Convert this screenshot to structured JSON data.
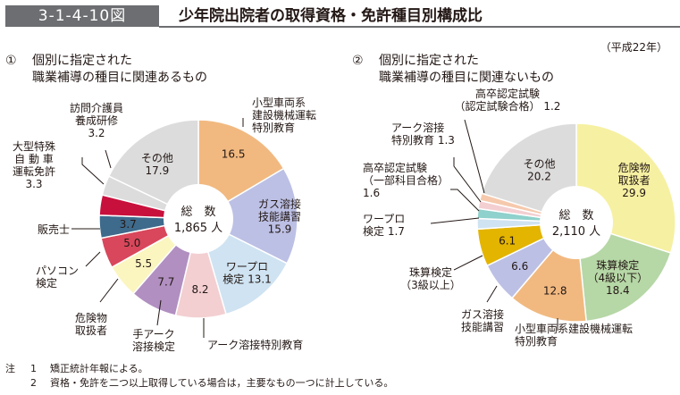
{
  "header": {
    "figure_label": "3-1-4-10図",
    "title": "少年院出院者の取得資格・免許種目別構成比"
  },
  "year_note": "（平成22年）",
  "notes": {
    "label": "注",
    "items": [
      {
        "num": "1",
        "text": "矯正統計年報による。"
      },
      {
        "num": "2",
        "text": "資格・免許を二つ以上取得している場合は，主要なもの一つに計上している。"
      }
    ]
  },
  "colors": {
    "orange": "#f1b980",
    "lavender": "#bcc0e5",
    "light_blue": "#cfe3f2",
    "pink": "#f3cfd2",
    "purple": "#b18fc1",
    "cream": "#fbf5c0",
    "red": "#d8475b",
    "steel_blue": "#3e6a8c",
    "crimson": "#c8103c",
    "gray": "#dcdcdc",
    "yellow": "#f6f0a2",
    "green": "#b6d7a6",
    "gold": "#e3b400",
    "teal": "#8fd1cc",
    "peach": "#f6c9ad"
  },
  "chart_data": [
    {
      "type": "pie",
      "donut": true,
      "number": "①",
      "title": [
        "個別に指定された",
        "職業補導の種目に関連あるもの"
      ],
      "center_label": [
        "総　数",
        "1,865 人"
      ],
      "unit": "%",
      "slices": [
        {
          "label": "小型車両系建設機械運転特別教育",
          "value": 16.5,
          "color": "orange"
        },
        {
          "label": "ガス溶接技能講習",
          "value": 15.9,
          "color": "lavender"
        },
        {
          "label": "ワープロ検定",
          "value": 13.1,
          "color": "light_blue"
        },
        {
          "label": "アーク溶接特別教育",
          "value": 8.2,
          "color": "pink"
        },
        {
          "label": "手アーク溶接検定",
          "value": 7.7,
          "color": "purple"
        },
        {
          "label": "危険物取扱者",
          "value": 5.5,
          "color": "cream"
        },
        {
          "label": "パソコン検定",
          "value": 5.0,
          "color": "red"
        },
        {
          "label": "販売士",
          "value": 3.7,
          "color": "steel_blue"
        },
        {
          "label": "大型特殊自動車運転免許",
          "value": 3.3,
          "color": "crimson"
        },
        {
          "label": "訪問介護員養成研修",
          "value": 3.2,
          "color": "gray"
        },
        {
          "label": "その他",
          "value": 17.9,
          "color": "gray"
        }
      ],
      "labels": {
        "inside": [
          {
            "slice": 0,
            "lines": [
              "16.5"
            ]
          },
          {
            "slice": 1,
            "lines": [
              "ガス溶接",
              "技能講習",
              "15.9"
            ]
          },
          {
            "slice": 2,
            "lines": [
              "ワープロ",
              "検定 13.1"
            ]
          },
          {
            "slice": 3,
            "lines": [
              "8.2"
            ]
          },
          {
            "slice": 4,
            "lines": [
              "7.7"
            ]
          },
          {
            "slice": 5,
            "lines": [
              "5.5"
            ]
          },
          {
            "slice": 6,
            "lines": [
              "5.0"
            ]
          },
          {
            "slice": 7,
            "lines": [
              "3.7"
            ]
          },
          {
            "slice": 10,
            "lines": [
              "その他",
              "17.9"
            ]
          }
        ],
        "outside": [
          {
            "slice": 0,
            "lines": [
              "小型車両系",
              "建設機械運転",
              "特別教育"
            ],
            "anchor": "start"
          },
          {
            "slice": 3,
            "lines": [
              "アーク溶接特別教育"
            ],
            "anchor": "start"
          },
          {
            "slice": 4,
            "lines": [
              "手アーク",
              "溶接検定"
            ],
            "anchor": "middle"
          },
          {
            "slice": 5,
            "lines": [
              "危険物",
              "取扱者"
            ],
            "anchor": "middle"
          },
          {
            "slice": 6,
            "lines": [
              "パソコン",
              "検定"
            ],
            "anchor": "start"
          },
          {
            "slice": 7,
            "lines": [
              "販売士"
            ],
            "anchor": "start"
          },
          {
            "slice": 8,
            "lines": [
              "大型特殊",
              "自 動 車",
              "運転免許",
              "3.3"
            ],
            "anchor": "middle"
          },
          {
            "slice": 9,
            "lines": [
              "訪問介護員",
              "養成研修",
              "3.2"
            ],
            "anchor": "middle"
          }
        ]
      }
    },
    {
      "type": "pie",
      "donut": true,
      "number": "②",
      "title": [
        "個別に指定された",
        "職業補導の種目に関連ないもの"
      ],
      "center_label": [
        "総　数",
        "2,110 人"
      ],
      "unit": "%",
      "slices": [
        {
          "label": "危険物取扱者",
          "value": 29.9,
          "color": "yellow"
        },
        {
          "label": "珠算検定（4級以下）",
          "value": 18.4,
          "color": "green"
        },
        {
          "label": "小型車両系建設機械運転特別教育",
          "value": 12.8,
          "color": "orange"
        },
        {
          "label": "ガス溶接技能講習",
          "value": 6.6,
          "color": "lavender"
        },
        {
          "label": "珠算検定（3級以上）",
          "value": 6.1,
          "color": "gold"
        },
        {
          "label": "ワープロ検定",
          "value": 1.7,
          "color": "light_blue"
        },
        {
          "label": "高卒認定試験（一部科目合格）",
          "value": 1.6,
          "color": "teal"
        },
        {
          "label": "アーク溶接特別教育",
          "value": 1.3,
          "color": "pink"
        },
        {
          "label": "高卒認定試験（認定試験合格）",
          "value": 1.2,
          "color": "peach"
        },
        {
          "label": "その他",
          "value": 20.2,
          "color": "gray"
        }
      ],
      "labels": {
        "inside": [
          {
            "slice": 0,
            "lines": [
              "危険物",
              "取扱者",
              "29.9"
            ]
          },
          {
            "slice": 1,
            "lines": [
              "珠算検定",
              "（4級以下）",
              "18.4"
            ]
          },
          {
            "slice": 2,
            "lines": [
              "12.8"
            ]
          },
          {
            "slice": 3,
            "lines": [
              "6.6"
            ]
          },
          {
            "slice": 4,
            "lines": [
              "6.1"
            ]
          },
          {
            "slice": 9,
            "lines": [
              "その他",
              "20.2"
            ]
          }
        ],
        "outside": [
          {
            "slice": 2,
            "lines": [
              "小型車両系建設機械運転",
              "特別教育"
            ],
            "anchor": "start"
          },
          {
            "slice": 3,
            "lines": [
              "ガス溶接",
              "技能講習"
            ],
            "anchor": "middle"
          },
          {
            "slice": 4,
            "lines": [
              "珠算検定",
              "（3級以上）"
            ],
            "anchor": "middle"
          },
          {
            "slice": 5,
            "lines": [
              "ワープロ",
              "検定 1.7"
            ],
            "anchor": "start"
          },
          {
            "slice": 6,
            "lines": [
              "高卒認定試験",
              "（一部科目合格）",
              "1.6"
            ],
            "anchor": "start"
          },
          {
            "slice": 7,
            "lines": [
              "アーク溶接",
              "特別教育 1.3"
            ],
            "anchor": "start"
          },
          {
            "slice": 8,
            "lines": [
              "高卒認定試験",
              "（認定試験合格） 1.2"
            ],
            "anchor": "middle"
          }
        ]
      }
    }
  ]
}
